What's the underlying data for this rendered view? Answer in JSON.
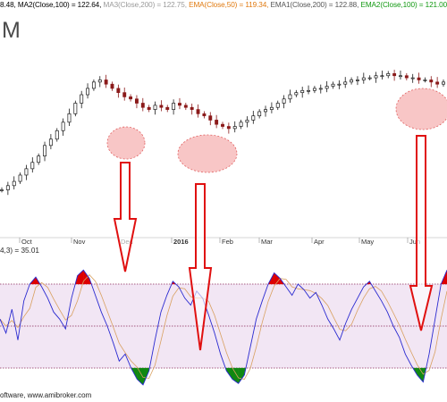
{
  "header": {
    "items": [
      {
        "text": "8.48, ",
        "color": "#000000"
      },
      {
        "text": "MA2(Close,100) = 122.64, ",
        "color": "#000000"
      },
      {
        "text": "MA3(Close,200) = 122.75, ",
        "color": "#9a9a9a"
      },
      {
        "text": "EMA(Close,50) = 119.34, ",
        "color": "#e07a10"
      },
      {
        "text": "EMA1(Close,200) = 122.88, ",
        "color": "#555555"
      },
      {
        "text": "EMA2(Close,100) = 121.00",
        "color": "#119911"
      }
    ]
  },
  "ticker_partial": "M",
  "oscillator_header": "4,3) = 35.01",
  "footer": "oftware, www.amibroker.com",
  "colors": {
    "candle_up": "#1a1a1a",
    "candle_down": "#8b1a1a",
    "highlight_fill": "#f8c6c6",
    "highlight_stroke": "#e06060",
    "arrow": "#e01010",
    "osc_line": "#2a2ad0",
    "osc_signal": "#d8a060",
    "band_fill": "#f2e6f4",
    "overbought_fill": "#dd0000",
    "oversold_fill": "#118811"
  },
  "chart_data": [
    {
      "type": "candlestick",
      "title": "",
      "xlabel": "",
      "ylabel": "",
      "x_tick_labels": [
        "Oct",
        "Nov",
        "Dec",
        "2016",
        "Feb",
        "Mar",
        "Apr",
        "May",
        "Jun"
      ],
      "series": [
        {
          "values": [
            34,
            36,
            38,
            41,
            44,
            47,
            50,
            55,
            58,
            62,
            66,
            70,
            75,
            79,
            82,
            85,
            86,
            84,
            82,
            80,
            78,
            77,
            75,
            73,
            72,
            74,
            73,
            72,
            75,
            74,
            73,
            72,
            70,
            69,
            67,
            65,
            64,
            63,
            64,
            66,
            67,
            69,
            71,
            72,
            73,
            75,
            77,
            79,
            80,
            81,
            81,
            82,
            82,
            83,
            84,
            84,
            85,
            86,
            86,
            87,
            87,
            88,
            88,
            89,
            88,
            88,
            87,
            87,
            86,
            86,
            85,
            84,
            85
          ]
        }
      ]
    },
    {
      "type": "line",
      "title": "",
      "xlabel": "",
      "ylabel": "",
      "ylim": [
        0,
        100
      ],
      "reference_levels": [
        80,
        50,
        20
      ],
      "series": [
        {
          "values": [
            55,
            45,
            62,
            40,
            68,
            80,
            85,
            78,
            70,
            60,
            55,
            48,
            70,
            86,
            90,
            84,
            72,
            60,
            50,
            38,
            25,
            30,
            20,
            12,
            8,
            18,
            40,
            60,
            72,
            82,
            78,
            70,
            65,
            75,
            70,
            58,
            45,
            30,
            18,
            12,
            9,
            15,
            35,
            55,
            68,
            80,
            88,
            84,
            78,
            72,
            80,
            76,
            70,
            74,
            65,
            55,
            48,
            40,
            52,
            62,
            70,
            78,
            82,
            75,
            68,
            60,
            50,
            42,
            30,
            22,
            15,
            10,
            30,
            55,
            80,
            90
          ]
        }
      ]
    }
  ]
}
